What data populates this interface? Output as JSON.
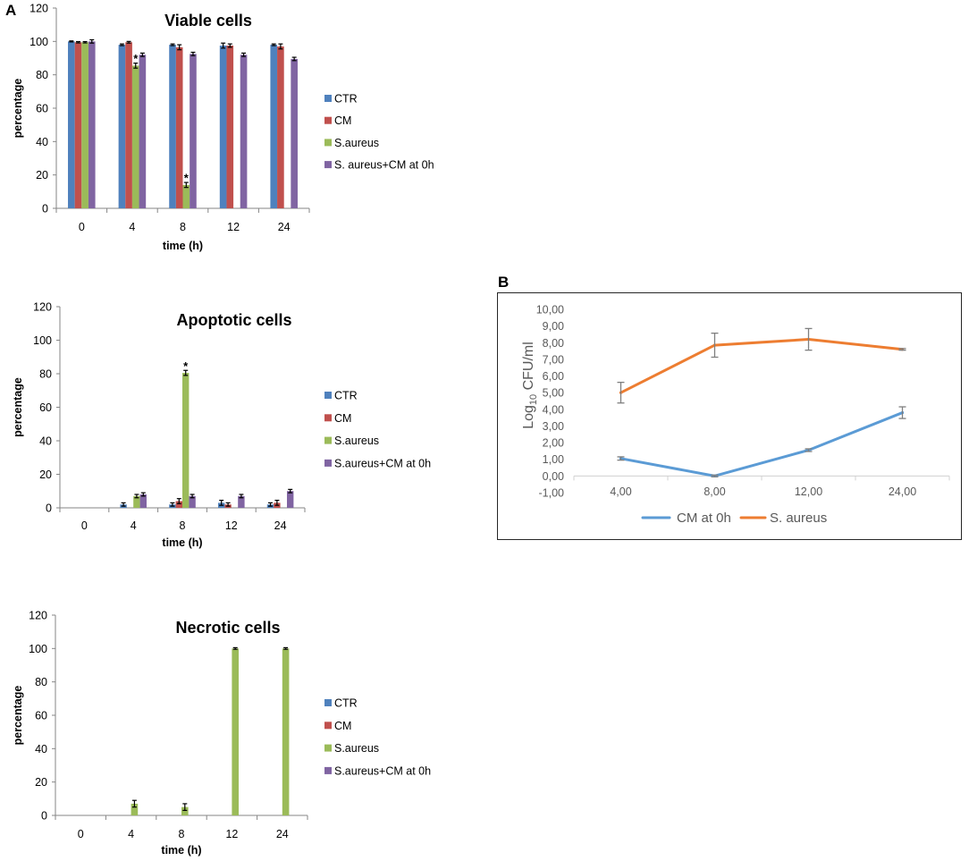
{
  "panel_labels": {
    "a": "A",
    "b": "B"
  },
  "chart_data": [
    {
      "type": "bar",
      "title": "Viable cells",
      "xlabel": "time (h)",
      "ylabel": "percentage",
      "ylim": [
        0,
        120
      ],
      "yticks": [
        0,
        20,
        40,
        60,
        80,
        100,
        120
      ],
      "categories": [
        "0",
        "4",
        "8",
        "12",
        "24"
      ],
      "legend": "right",
      "series": [
        {
          "name": "CTR",
          "color": "#4F81BD",
          "values": [
            100,
            98,
            98,
            97.5,
            98
          ],
          "errors": [
            0.3,
            0.5,
            0.5,
            1.5,
            0.5
          ]
        },
        {
          "name": "CM",
          "color": "#C0504D",
          "values": [
            99.5,
            99.5,
            96.5,
            97.5,
            97
          ],
          "errors": [
            0.4,
            0.5,
            1.5,
            1,
            1.5
          ]
        },
        {
          "name": "S.aureus",
          "color": "#9BBB59",
          "values": [
            99.5,
            85.5,
            14,
            null,
            null
          ],
          "errors": [
            0.4,
            1.5,
            1.5,
            null,
            null
          ]
        },
        {
          "name": "S. aureus+CM at 0h",
          "color": "#8064A2",
          "values": [
            100,
            92,
            92.5,
            92,
            89.5
          ],
          "errors": [
            1,
            1,
            1,
            1,
            1
          ]
        }
      ],
      "annotations": [
        {
          "text": "*",
          "series": 2,
          "category": 1
        },
        {
          "text": "*",
          "series": 2,
          "category": 2
        }
      ]
    },
    {
      "type": "bar",
      "title": "Apoptotic cells",
      "xlabel": "time (h)",
      "ylabel": "percentage",
      "ylim": [
        0,
        120
      ],
      "yticks": [
        0,
        20,
        40,
        60,
        80,
        100,
        120
      ],
      "categories": [
        "0",
        "4",
        "8",
        "12",
        "24"
      ],
      "legend": "right",
      "series": [
        {
          "name": "CTR",
          "color": "#4F81BD",
          "values": [
            0,
            2,
            2,
            3,
            2
          ],
          "errors": [
            null,
            1,
            1,
            1.5,
            1
          ]
        },
        {
          "name": "CM",
          "color": "#C0504D",
          "values": [
            0,
            0,
            4,
            2,
            3
          ],
          "errors": [
            null,
            null,
            1.5,
            1,
            1.5
          ]
        },
        {
          "name": "S.aureus",
          "color": "#9BBB59",
          "values": [
            0,
            7,
            80.5,
            0,
            0
          ],
          "errors": [
            null,
            1,
            1.5,
            null,
            null
          ]
        },
        {
          "name": "S.aureus+CM at 0h",
          "color": "#8064A2",
          "values": [
            0,
            8,
            7,
            7,
            10
          ],
          "errors": [
            null,
            1,
            1,
            1,
            1
          ]
        }
      ],
      "annotations": [
        {
          "text": "*",
          "series": 2,
          "category": 2
        }
      ]
    },
    {
      "type": "bar",
      "title": "Necrotic cells",
      "xlabel": "time (h)",
      "ylabel": "percentage",
      "ylim": [
        0,
        120
      ],
      "yticks": [
        0,
        20,
        40,
        60,
        80,
        100,
        120
      ],
      "categories": [
        "0",
        "4",
        "8",
        "12",
        "24"
      ],
      "legend": "right",
      "series": [
        {
          "name": "CTR",
          "color": "#4F81BD",
          "values": [
            0,
            0,
            0,
            0,
            0
          ],
          "errors": [
            null,
            null,
            null,
            null,
            null
          ]
        },
        {
          "name": "CM",
          "color": "#C0504D",
          "values": [
            0,
            0,
            0,
            0,
            0
          ],
          "errors": [
            null,
            null,
            null,
            null,
            null
          ]
        },
        {
          "name": "S.aureus",
          "color": "#9BBB59",
          "values": [
            0,
            7,
            5,
            100,
            100
          ],
          "errors": [
            null,
            2,
            2,
            0.5,
            0.5
          ]
        },
        {
          "name": "S.aureus+CM at 0h",
          "color": "#8064A2",
          "values": [
            0,
            0,
            0,
            0,
            0
          ],
          "errors": [
            null,
            null,
            null,
            null,
            null
          ]
        }
      ],
      "annotations": []
    },
    {
      "type": "line",
      "ylabel_parts": {
        "base": "Log",
        "sub": "10",
        "rest": " CFU/ml"
      },
      "ylim": [
        -1,
        10
      ],
      "yticks": [
        10,
        9,
        8,
        7,
        6,
        5,
        4,
        3,
        2,
        1,
        0,
        -1
      ],
      "ytick_labels": [
        "10,00",
        "9,00",
        "8,00",
        "7,00",
        "6,00",
        "5,00",
        "4,00",
        "3,00",
        "2,00",
        "1,00",
        "0,00",
        "-1,00"
      ],
      "categories": [
        "4,00",
        "8,00",
        "12,00",
        "24,00"
      ],
      "legend": "bottom",
      "series": [
        {
          "name": "CM at 0h",
          "color": "#5B9BD5",
          "values": [
            1.05,
            0.0,
            1.55,
            3.8
          ],
          "errors": [
            0.1,
            0.05,
            0.08,
            0.35
          ]
        },
        {
          "name": "S. aureus",
          "color": "#ED7D31",
          "values": [
            5.0,
            7.85,
            8.2,
            7.6
          ],
          "errors": [
            0.62,
            0.72,
            0.65,
            0.05
          ]
        }
      ]
    }
  ]
}
